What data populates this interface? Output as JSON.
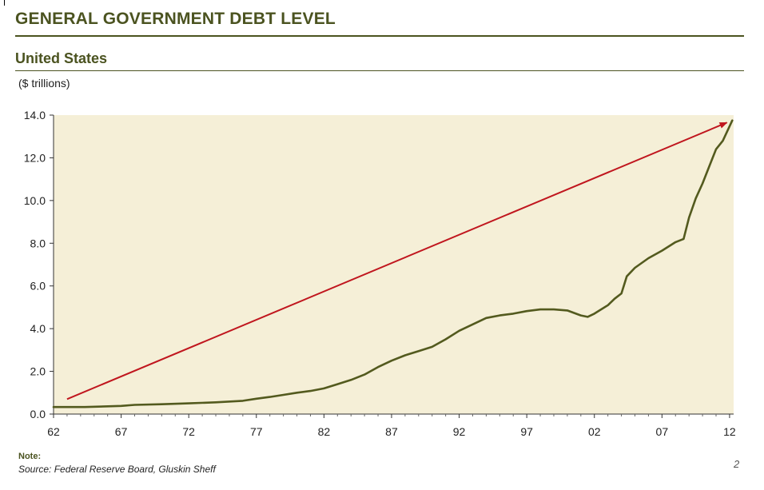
{
  "header": {
    "title": "GENERAL GOVERNMENT DEBT LEVEL",
    "subtitle": "United States",
    "units": "($ trillions)"
  },
  "footer": {
    "note_label": "Note:",
    "source": "Source: Federal Reserve Board, Gluskin Sheff",
    "page_number": "2"
  },
  "colors": {
    "plot_background": "#f5efd7",
    "series_line": "#535a1e",
    "trend_arrow": "#c0161e",
    "text": "#222222"
  },
  "chart_data": {
    "type": "line",
    "title": "GENERAL GOVERNMENT DEBT LEVEL",
    "subtitle": "United States",
    "ylabel": "($ trillions)",
    "xlabel": "",
    "ylim": [
      0,
      14
    ],
    "xlim": [
      1962,
      2012.3
    ],
    "y_ticks": [
      "0.0",
      "2.0",
      "4.0",
      "6.0",
      "8.0",
      "10.0",
      "12.0",
      "14.0"
    ],
    "x_ticks": [
      {
        "label": "62",
        "x": 1962
      },
      {
        "label": "67",
        "x": 1967
      },
      {
        "label": "72",
        "x": 1972
      },
      {
        "label": "77",
        "x": 1977
      },
      {
        "label": "82",
        "x": 1982
      },
      {
        "label": "87",
        "x": 1987
      },
      {
        "label": "92",
        "x": 1992
      },
      {
        "label": "97",
        "x": 1997
      },
      {
        "label": "02",
        "x": 2002
      },
      {
        "label": "07",
        "x": 2007
      },
      {
        "label": "12",
        "x": 2012
      }
    ],
    "grid": false,
    "series": [
      {
        "x": [
          1962,
          1964.3,
          1967,
          1968,
          1970,
          1972,
          1974,
          1976,
          1977,
          1978,
          1979,
          1980,
          1981,
          1982,
          1983,
          1984,
          1985,
          1986,
          1987,
          1988,
          1989,
          1990,
          1991,
          1992,
          1993,
          1994,
          1995,
          1996,
          1997,
          1998,
          1999,
          2000,
          2001,
          2001.5,
          2002,
          2003,
          2003.5,
          2004,
          2004.4,
          2005,
          2006,
          2007,
          2008,
          2008.6,
          2009,
          2009.5,
          2010,
          2010.5,
          2011,
          2011.5,
          2012.2
        ],
        "values": [
          0.33,
          0.33,
          0.38,
          0.43,
          0.46,
          0.5,
          0.55,
          0.62,
          0.72,
          0.8,
          0.9,
          1.0,
          1.08,
          1.2,
          1.4,
          1.6,
          1.85,
          2.2,
          2.5,
          2.75,
          2.95,
          3.15,
          3.5,
          3.9,
          4.2,
          4.5,
          4.62,
          4.7,
          4.82,
          4.9,
          4.9,
          4.85,
          4.62,
          4.55,
          4.7,
          5.1,
          5.4,
          5.65,
          6.45,
          6.85,
          7.3,
          7.65,
          8.05,
          8.2,
          9.2,
          10.1,
          10.8,
          11.6,
          12.4,
          12.8,
          13.75
        ]
      }
    ],
    "annotations": [
      {
        "type": "arrow",
        "from": [
          1963,
          0.7
        ],
        "to": [
          2011.8,
          13.65
        ]
      }
    ]
  }
}
